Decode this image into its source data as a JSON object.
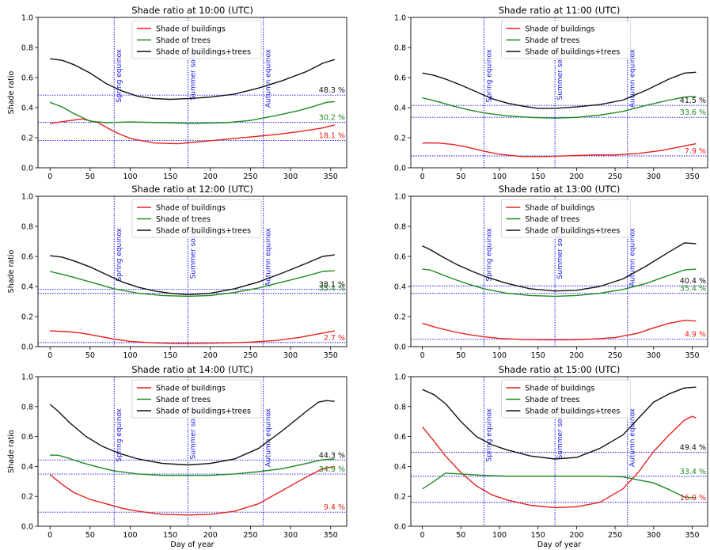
{
  "colors": {
    "buildings": "#e8201f",
    "trees": "#1f8a1f",
    "combined": "#111111",
    "guide": "#1515e8"
  },
  "chart_data": [
    {
      "type": "line",
      "title": "Shade ratio at 10:00 (UTC)",
      "xlabel": "",
      "ylabel": "Shade ratio",
      "xlim": [
        -15,
        370
      ],
      "ylim": [
        0,
        1.0
      ],
      "xticks": [
        "0",
        "50",
        "100",
        "150",
        "200",
        "250",
        "300",
        "350"
      ],
      "yticks": [
        "0.0",
        "0.2",
        "0.4",
        "0.6",
        "0.8",
        "1.0"
      ],
      "legend": {
        "position": "top-center",
        "entries": [
          "Shade of buildings",
          "Shade of trees",
          "Shade of buildings+trees"
        ]
      },
      "vlines": [
        {
          "x": 80,
          "label": "Spring equinox"
        },
        {
          "x": 172,
          "label": "Summer solsti"
        },
        {
          "x": 266,
          "label": "Autumn equinox"
        }
      ],
      "series": [
        {
          "name": "Shade of buildings",
          "color_key": "buildings",
          "x": [
            0,
            20,
            40,
            60,
            80,
            100,
            130,
            160,
            190,
            220,
            250,
            280,
            310,
            340,
            355
          ],
          "y": [
            0.295,
            0.31,
            0.325,
            0.3,
            0.24,
            0.195,
            0.165,
            0.16,
            0.175,
            0.19,
            0.205,
            0.22,
            0.24,
            0.265,
            0.285
          ],
          "hline": 0.181,
          "label": "18.1 %"
        },
        {
          "name": "Shade of trees",
          "color_key": "trees",
          "x": [
            0,
            15,
            30,
            50,
            70,
            100,
            140,
            180,
            220,
            250,
            280,
            310,
            330,
            345,
            355
          ],
          "y": [
            0.435,
            0.405,
            0.36,
            0.31,
            0.3,
            0.305,
            0.3,
            0.295,
            0.3,
            0.315,
            0.345,
            0.38,
            0.41,
            0.435,
            0.44
          ],
          "hline": 0.302,
          "label": "30.2 %"
        },
        {
          "name": "Shade of buildings+trees",
          "color_key": "combined",
          "x": [
            0,
            15,
            30,
            50,
            70,
            90,
            110,
            130,
            150,
            172,
            200,
            230,
            260,
            290,
            320,
            340,
            355
          ],
          "y": [
            0.725,
            0.715,
            0.685,
            0.63,
            0.56,
            0.51,
            0.475,
            0.46,
            0.455,
            0.46,
            0.47,
            0.49,
            0.53,
            0.58,
            0.64,
            0.695,
            0.72
          ],
          "hline": 0.483,
          "label": "48.3 %"
        }
      ]
    },
    {
      "type": "line",
      "title": "Shade ratio at 11:00 (UTC)",
      "xlabel": "",
      "ylabel": "",
      "xlim": [
        -15,
        370
      ],
      "ylim": [
        0,
        1.0
      ],
      "xticks": [
        "0",
        "50",
        "100",
        "150",
        "200",
        "250",
        "300",
        "350"
      ],
      "yticks": [
        "0.0",
        "0.2",
        "0.4",
        "0.6",
        "0.8",
        "1.0"
      ],
      "legend": {
        "position": "top-center",
        "entries": [
          "Shade of buildings",
          "Shade of trees",
          "Shade of buildings+trees"
        ]
      },
      "vlines": [
        {
          "x": 80,
          "label": "Spring equinox"
        },
        {
          "x": 172,
          "label": "Summer solsti"
        },
        {
          "x": 266,
          "label": "Autumn equinox"
        }
      ],
      "series": [
        {
          "name": "Shade of buildings",
          "color_key": "buildings",
          "x": [
            0,
            20,
            40,
            60,
            80,
            100,
            130,
            160,
            190,
            220,
            250,
            280,
            310,
            340,
            355
          ],
          "y": [
            0.165,
            0.165,
            0.155,
            0.135,
            0.11,
            0.09,
            0.075,
            0.075,
            0.08,
            0.085,
            0.085,
            0.095,
            0.115,
            0.145,
            0.16
          ],
          "hline": 0.079,
          "label": "7.9 %"
        },
        {
          "name": "Shade of trees",
          "color_key": "trees",
          "x": [
            0,
            20,
            40,
            60,
            80,
            110,
            140,
            172,
            200,
            230,
            260,
            290,
            320,
            340,
            355
          ],
          "y": [
            0.465,
            0.44,
            0.41,
            0.385,
            0.365,
            0.345,
            0.335,
            0.33,
            0.335,
            0.35,
            0.375,
            0.415,
            0.45,
            0.47,
            0.475
          ],
          "hline": 0.336,
          "label": "33.6 %"
        },
        {
          "name": "Shade of buildings+trees",
          "color_key": "combined",
          "x": [
            0,
            15,
            30,
            50,
            70,
            90,
            110,
            130,
            150,
            172,
            200,
            230,
            260,
            290,
            320,
            340,
            355
          ],
          "y": [
            0.63,
            0.615,
            0.59,
            0.55,
            0.505,
            0.46,
            0.43,
            0.41,
            0.395,
            0.395,
            0.405,
            0.42,
            0.45,
            0.515,
            0.59,
            0.63,
            0.635
          ],
          "hline": 0.415,
          "label": "41.5 %"
        }
      ]
    },
    {
      "type": "line",
      "title": "Shade ratio at 12:00 (UTC)",
      "xlabel": "",
      "ylabel": "Shade ratio",
      "xlim": [
        -15,
        370
      ],
      "ylim": [
        0,
        1.0
      ],
      "xticks": [
        "0",
        "50",
        "100",
        "150",
        "200",
        "250",
        "300",
        "350"
      ],
      "yticks": [
        "0.0",
        "0.2",
        "0.4",
        "0.6",
        "0.8",
        "1.0"
      ],
      "legend": {
        "position": "top-center",
        "entries": [
          "Shade of buildings",
          "Shade of trees",
          "Shade of buildings+trees"
        ]
      },
      "vlines": [
        {
          "x": 80,
          "label": "Spring equinox"
        },
        {
          "x": 172,
          "label": "Summer solsti"
        },
        {
          "x": 266,
          "label": "Autumn equinox"
        }
      ],
      "series": [
        {
          "name": "Shade of buildings",
          "color_key": "buildings",
          "x": [
            0,
            20,
            40,
            60,
            80,
            100,
            130,
            160,
            190,
            220,
            250,
            280,
            310,
            340,
            355
          ],
          "y": [
            0.105,
            0.1,
            0.09,
            0.07,
            0.05,
            0.035,
            0.025,
            0.02,
            0.022,
            0.025,
            0.03,
            0.04,
            0.06,
            0.09,
            0.105
          ],
          "hline": 0.027,
          "label": "2.7 %"
        },
        {
          "name": "Shade of trees",
          "color_key": "trees",
          "x": [
            0,
            20,
            40,
            60,
            80,
            110,
            140,
            172,
            200,
            230,
            260,
            290,
            320,
            340,
            355
          ],
          "y": [
            0.5,
            0.475,
            0.445,
            0.415,
            0.385,
            0.355,
            0.34,
            0.335,
            0.34,
            0.36,
            0.39,
            0.43,
            0.47,
            0.5,
            0.505
          ],
          "hline": 0.354,
          "label": "35.4 %"
        },
        {
          "name": "Shade of buildings+trees",
          "color_key": "combined",
          "x": [
            0,
            15,
            30,
            50,
            70,
            90,
            110,
            130,
            150,
            172,
            200,
            230,
            260,
            290,
            320,
            340,
            355
          ],
          "y": [
            0.605,
            0.595,
            0.57,
            0.53,
            0.48,
            0.43,
            0.395,
            0.37,
            0.355,
            0.345,
            0.355,
            0.385,
            0.43,
            0.49,
            0.555,
            0.6,
            0.61
          ],
          "hline": 0.381,
          "label": "38.1 %"
        }
      ]
    },
    {
      "type": "line",
      "title": "Shade ratio at 13:00 (UTC)",
      "xlabel": "",
      "ylabel": "",
      "xlim": [
        -15,
        370
      ],
      "ylim": [
        0,
        1.0
      ],
      "xticks": [
        "0",
        "50",
        "100",
        "150",
        "200",
        "250",
        "300",
        "350"
      ],
      "yticks": [
        "0.0",
        "0.2",
        "0.4",
        "0.6",
        "0.8",
        "1.0"
      ],
      "legend": {
        "position": "top-center",
        "entries": [
          "Shade of buildings",
          "Shade of trees",
          "Shade of buildings+trees"
        ]
      },
      "vlines": [
        {
          "x": 80,
          "label": "Spring equinox"
        },
        {
          "x": 172,
          "label": "Summer solsti"
        },
        {
          "x": 266,
          "label": "Autumn equinox"
        }
      ],
      "series": [
        {
          "name": "Shade of buildings",
          "color_key": "buildings",
          "x": [
            0,
            20,
            40,
            60,
            80,
            100,
            130,
            160,
            190,
            220,
            250,
            280,
            300,
            320,
            340,
            355
          ],
          "y": [
            0.155,
            0.125,
            0.1,
            0.08,
            0.065,
            0.055,
            0.048,
            0.045,
            0.045,
            0.05,
            0.06,
            0.09,
            0.125,
            0.155,
            0.175,
            0.17
          ],
          "hline": 0.049,
          "label": "4.9 %"
        },
        {
          "name": "Shade of trees",
          "color_key": "trees",
          "x": [
            0,
            10,
            20,
            40,
            60,
            80,
            110,
            140,
            172,
            200,
            230,
            260,
            290,
            320,
            340,
            355
          ],
          "y": [
            0.515,
            0.51,
            0.49,
            0.45,
            0.415,
            0.385,
            0.355,
            0.34,
            0.335,
            0.34,
            0.355,
            0.38,
            0.42,
            0.475,
            0.51,
            0.515
          ],
          "hline": 0.354,
          "label": "35.4 %"
        },
        {
          "name": "Shade of buildings+trees",
          "color_key": "combined",
          "x": [
            0,
            10,
            25,
            45,
            65,
            85,
            110,
            140,
            172,
            200,
            230,
            260,
            290,
            320,
            340,
            355
          ],
          "y": [
            0.67,
            0.645,
            0.6,
            0.545,
            0.5,
            0.46,
            0.42,
            0.385,
            0.37,
            0.375,
            0.4,
            0.45,
            0.535,
            0.63,
            0.69,
            0.685
          ],
          "hline": 0.404,
          "label": "40.4 %"
        }
      ]
    },
    {
      "type": "line",
      "title": "Shade ratio at 14:00 (UTC)",
      "xlabel": "Day of year",
      "ylabel": "Shade ratio",
      "xlim": [
        -15,
        370
      ],
      "ylim": [
        0,
        1.0
      ],
      "xticks": [
        "0",
        "50",
        "100",
        "150",
        "200",
        "250",
        "300",
        "350"
      ],
      "yticks": [
        "0.0",
        "0.2",
        "0.4",
        "0.6",
        "0.8",
        "1.0"
      ],
      "legend": {
        "position": "top-center",
        "entries": [
          "Shade of buildings",
          "Shade of trees",
          "Shade of buildings+trees"
        ]
      },
      "vlines": [
        {
          "x": 80,
          "label": "Spring equinox"
        },
        {
          "x": 172,
          "label": "Summer solsti"
        },
        {
          "x": 266,
          "label": "Autumn equinox"
        }
      ],
      "series": [
        {
          "name": "Shade of buildings",
          "color_key": "buildings",
          "x": [
            0,
            15,
            30,
            50,
            70,
            90,
            110,
            140,
            172,
            200,
            230,
            260,
            290,
            320,
            340,
            355
          ],
          "y": [
            0.345,
            0.28,
            0.225,
            0.18,
            0.15,
            0.12,
            0.1,
            0.08,
            0.075,
            0.08,
            0.1,
            0.15,
            0.24,
            0.33,
            0.385,
            0.4
          ],
          "hline": 0.094,
          "label": "9.4 %"
        },
        {
          "name": "Shade of trees",
          "color_key": "trees",
          "x": [
            0,
            10,
            20,
            40,
            60,
            80,
            110,
            140,
            172,
            200,
            230,
            260,
            290,
            320,
            340,
            355
          ],
          "y": [
            0.475,
            0.475,
            0.46,
            0.425,
            0.395,
            0.37,
            0.35,
            0.34,
            0.34,
            0.34,
            0.35,
            0.365,
            0.385,
            0.42,
            0.445,
            0.45
          ],
          "hline": 0.349,
          "label": "34.9 %"
        },
        {
          "name": "Shade of buildings+trees",
          "color_key": "combined",
          "x": [
            0,
            10,
            25,
            45,
            65,
            85,
            110,
            140,
            172,
            200,
            230,
            260,
            290,
            320,
            335,
            345,
            355
          ],
          "y": [
            0.815,
            0.77,
            0.69,
            0.6,
            0.535,
            0.49,
            0.45,
            0.42,
            0.41,
            0.42,
            0.45,
            0.52,
            0.64,
            0.77,
            0.83,
            0.84,
            0.835
          ],
          "hline": 0.443,
          "label": "44.3 %"
        }
      ]
    },
    {
      "type": "line",
      "title": "Shade ratio at 15:00 (UTC)",
      "xlabel": "Day of year",
      "ylabel": "",
      "xlim": [
        -15,
        370
      ],
      "ylim": [
        0,
        1.0
      ],
      "xticks": [
        "0",
        "50",
        "100",
        "150",
        "200",
        "250",
        "300",
        "350"
      ],
      "yticks": [
        "0.0",
        "0.2",
        "0.4",
        "0.6",
        "0.8",
        "1.0"
      ],
      "legend": {
        "position": "top-center",
        "entries": [
          "Shade of buildings",
          "Shade of trees",
          "Shade of buildings+trees"
        ]
      },
      "vlines": [
        {
          "x": 80,
          "label": "Spring equinox"
        },
        {
          "x": 172,
          "label": "Summer solsti"
        },
        {
          "x": 266,
          "label": "Autumn equinox"
        }
      ],
      "series": [
        {
          "name": "Shade of buildings",
          "color_key": "buildings",
          "x": [
            0,
            15,
            30,
            50,
            70,
            90,
            110,
            140,
            172,
            200,
            230,
            260,
            280,
            300,
            320,
            340,
            350,
            355
          ],
          "y": [
            0.665,
            0.57,
            0.47,
            0.36,
            0.27,
            0.21,
            0.175,
            0.14,
            0.125,
            0.13,
            0.16,
            0.25,
            0.36,
            0.5,
            0.61,
            0.71,
            0.735,
            0.725
          ],
          "hline": 0.16,
          "label": "16.0 %"
        },
        {
          "name": "Shade of trees",
          "color_key": "trees",
          "x": [
            0,
            15,
            30,
            50,
            80,
            110,
            140,
            172,
            200,
            230,
            260,
            280,
            300,
            320,
            340,
            355
          ],
          "y": [
            0.25,
            0.3,
            0.355,
            0.35,
            0.34,
            0.335,
            0.335,
            0.335,
            0.335,
            0.335,
            0.33,
            0.31,
            0.29,
            0.245,
            0.195,
            0.19
          ],
          "hline": 0.334,
          "label": "33.4 %"
        },
        {
          "name": "Shade of buildings+trees",
          "color_key": "combined",
          "x": [
            0,
            15,
            30,
            50,
            70,
            90,
            110,
            140,
            172,
            200,
            230,
            260,
            280,
            300,
            320,
            340,
            355
          ],
          "y": [
            0.915,
            0.88,
            0.82,
            0.7,
            0.6,
            0.545,
            0.51,
            0.47,
            0.45,
            0.46,
            0.52,
            0.61,
            0.72,
            0.83,
            0.885,
            0.925,
            0.93
          ],
          "hline": 0.494,
          "label": "49.4 %"
        }
      ]
    }
  ]
}
